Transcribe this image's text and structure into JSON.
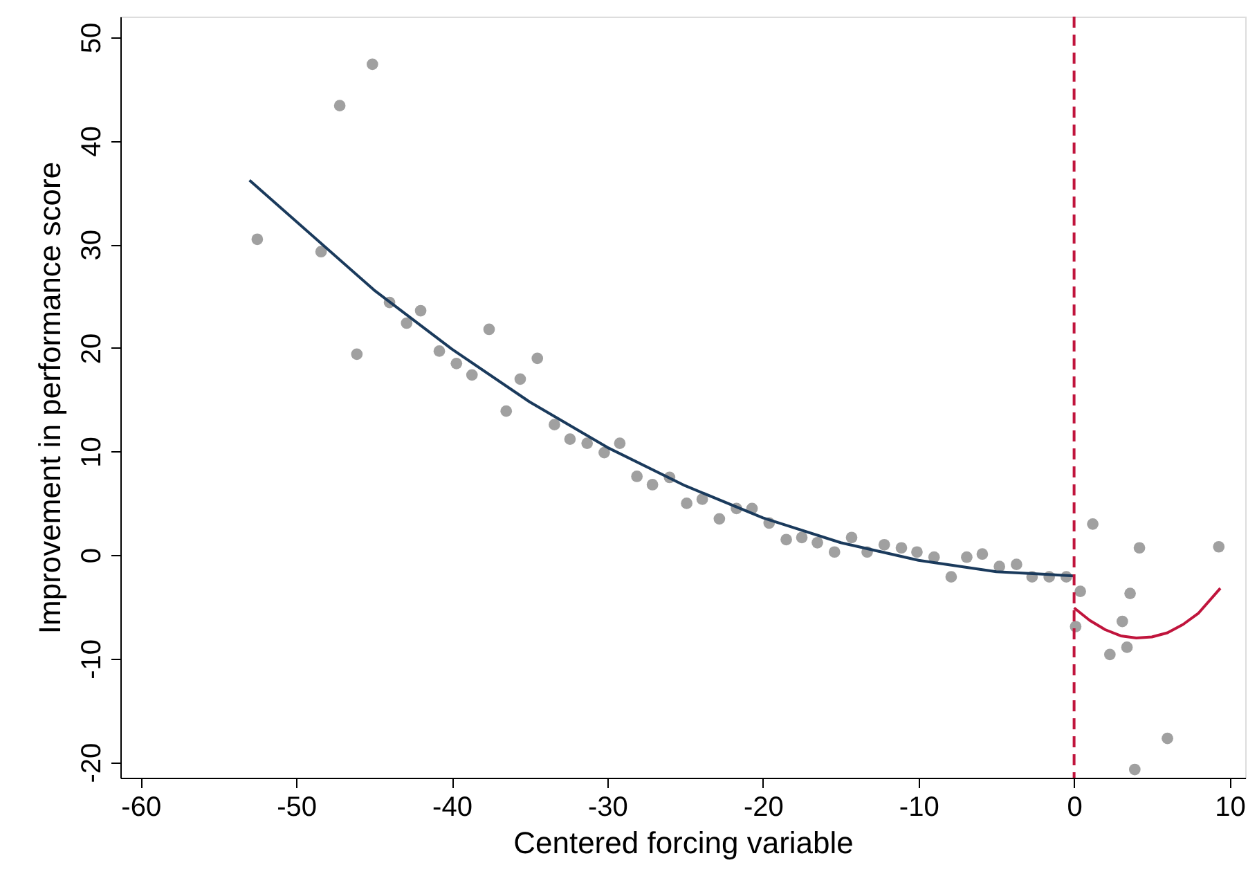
{
  "chart_data": {
    "type": "scatter",
    "xlabel": "Centered forcing variable",
    "ylabel": "Improvement in performance score",
    "xlim": [
      -61.3,
      11.0
    ],
    "ylim": [
      -21.5,
      52
    ],
    "xticks": [
      -60,
      -50,
      -40,
      -30,
      -20,
      -10,
      0,
      10
    ],
    "yticks": [
      -20,
      -10,
      0,
      10,
      20,
      30,
      40,
      50
    ],
    "grid": false,
    "series": [
      {
        "marker": "circle",
        "color": "#a0a0a0",
        "x": [
          -52.5,
          -48.4,
          -47.2,
          -46.1,
          -45.1,
          -44.0,
          -42.9,
          -42.0,
          -40.8,
          -39.7,
          -38.7,
          -37.6,
          -36.5,
          -35.6,
          -34.5,
          -33.4,
          -32.4,
          -31.3,
          -30.2,
          -29.2,
          -28.1,
          -27.1,
          -26.0,
          -24.9,
          -23.9,
          -22.8,
          -21.7,
          -20.7,
          -19.6,
          -18.5,
          -17.5,
          -16.5,
          -15.4,
          -14.3,
          -13.3,
          -12.2,
          -11.1,
          -10.1,
          -9.0,
          -7.9,
          -6.9,
          -5.9,
          -4.8,
          -3.7,
          -2.7,
          -1.6,
          -0.5,
          0.1,
          0.4,
          1.2,
          2.3,
          3.1,
          3.4,
          3.6,
          3.9,
          4.2,
          6.0,
          9.3
        ],
        "values": [
          30.5,
          29.3,
          43.4,
          19.4,
          47.4,
          24.4,
          22.4,
          23.6,
          19.7,
          18.5,
          17.4,
          21.8,
          13.9,
          17.0,
          19.0,
          12.6,
          11.2,
          10.8,
          9.9,
          10.8,
          7.6,
          6.8,
          7.5,
          5.0,
          5.4,
          3.5,
          4.5,
          4.5,
          3.1,
          1.5,
          1.7,
          1.2,
          0.3,
          1.7,
          0.3,
          1.0,
          0.7,
          0.3,
          -0.2,
          -2.1,
          -0.2,
          0.1,
          -1.1,
          -0.9,
          -2.1,
          -2.1,
          -2.1,
          -6.9,
          -3.5,
          3.0,
          -9.6,
          -6.4,
          -8.9,
          -3.7,
          -20.7,
          0.7,
          -17.7,
          0.8
        ]
      },
      {
        "type": "line",
        "line_style": "solid",
        "color": "#1a3a5c",
        "x": [
          -53,
          -45,
          -40,
          -35,
          -30,
          -25,
          -20,
          -15,
          -10,
          -5,
          0
        ],
        "values": [
          36.2,
          25.6,
          19.9,
          14.8,
          10.4,
          6.7,
          3.6,
          1.2,
          -0.5,
          -1.6,
          -2.0
        ]
      },
      {
        "type": "line",
        "line_style": "solid",
        "color": "#c0143c",
        "x": [
          0,
          1,
          2,
          3,
          4,
          5,
          6,
          7,
          8,
          9.4
        ],
        "values": [
          -5.1,
          -6.3,
          -7.2,
          -7.8,
          -8.0,
          -7.9,
          -7.5,
          -6.7,
          -5.6,
          -3.2
        ]
      }
    ],
    "ref_lines": [
      {
        "axis": "x",
        "value": 0,
        "color": "#c0143c",
        "line_style": "dashed"
      }
    ]
  }
}
